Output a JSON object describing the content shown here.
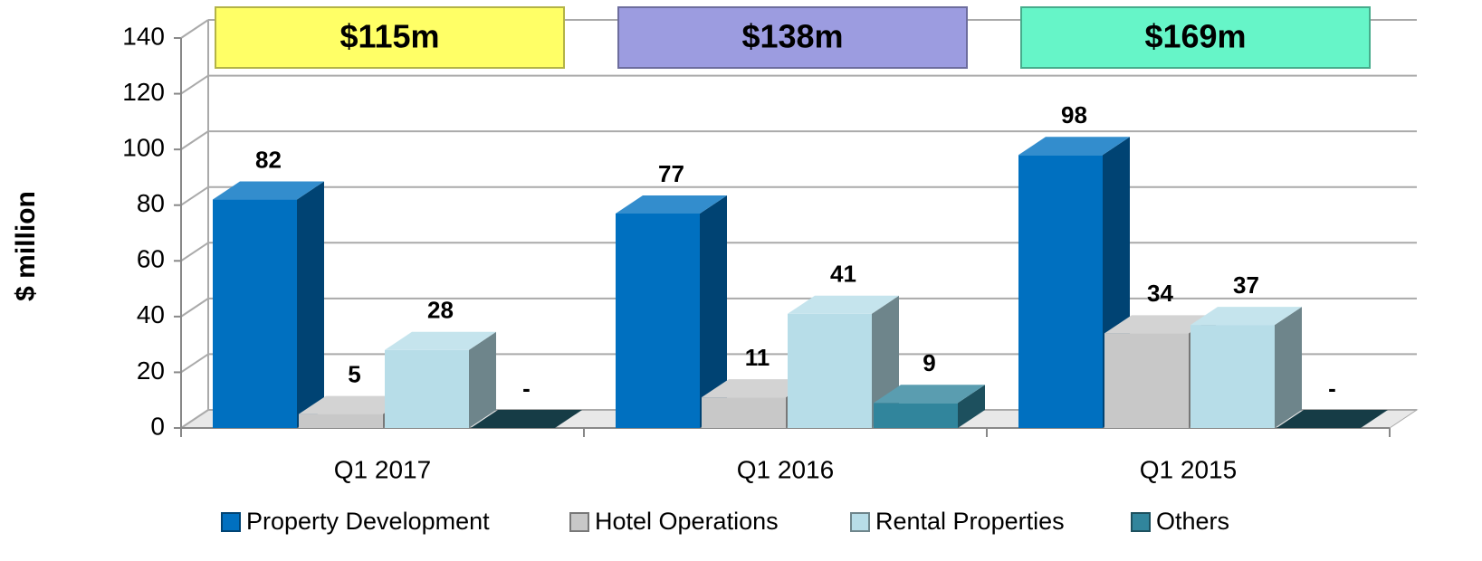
{
  "chart_data": {
    "type": "bar3d",
    "y_label": "$ million",
    "categories": [
      "Q1 2017",
      "Q1 2016",
      "Q1 2015"
    ],
    "series": [
      {
        "name": "Property Development",
        "color": "#0070c0",
        "values": [
          82,
          77,
          98
        ]
      },
      {
        "name": "Hotel Operations",
        "color": "#c8c8c8",
        "values": [
          5,
          11,
          34
        ]
      },
      {
        "name": "Rental Properties",
        "color": "#b7dde8",
        "values": [
          28,
          41,
          37
        ]
      },
      {
        "name": "Others",
        "color": "#31859c",
        "values": [
          0,
          9,
          0
        ],
        "value_labels": [
          "-",
          "9",
          "-"
        ]
      }
    ],
    "annotations": [
      {
        "text": "$115m",
        "color": "#ffff66"
      },
      {
        "text": "$138m",
        "color": "#9c9ce0"
      },
      {
        "text": "$169m",
        "color": "#66f5c8"
      }
    ],
    "ylim": [
      0,
      140
    ],
    "yticks": [
      0,
      20,
      40,
      60,
      80,
      100,
      120,
      140
    ],
    "grid": true
  }
}
